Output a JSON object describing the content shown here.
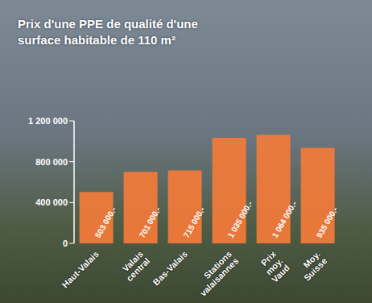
{
  "chart_data": {
    "type": "bar",
    "title": "Prix d'une PPE de qualité d'une surface habitable de 110 m²",
    "categories": [
      "Haut-Valais",
      "Valais central",
      "Bas-Valais",
      "Stations valaisannes",
      "Prix moy. Vaud",
      "Moy. Suisse"
    ],
    "values": [
      503000,
      701000,
      715000,
      1035000,
      1064000,
      935000
    ],
    "value_labels": [
      "503 000.-",
      "701 000.-",
      "715 000.-",
      "1 035 000.-",
      "1 064 000.-",
      "935 000.-"
    ],
    "color": "#f47b3a",
    "ylim": [
      0,
      1200000
    ],
    "yticks": [
      0,
      {
        "value": 400000,
        "label": "400 000"
      },
      {
        "value": 800000,
        "label": "800 000"
      },
      {
        "value": 1200000,
        "label": "1 200 000"
      }
    ],
    "grid": false,
    "data_labels": true
  }
}
